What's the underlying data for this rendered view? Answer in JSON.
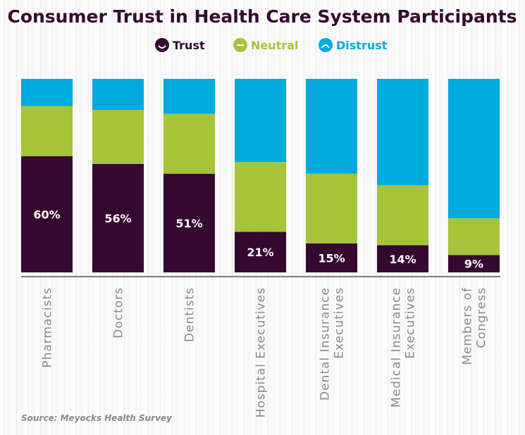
{
  "chart_data": {
    "type": "bar",
    "stacked": true,
    "title": "Consumer Trust in Health Care System Participants",
    "categories": [
      [
        "Pharmacists"
      ],
      [
        "Doctors"
      ],
      [
        "Dentists"
      ],
      [
        "Hospital Executives"
      ],
      [
        "Dental Insurance",
        "Executives"
      ],
      [
        "Medical Insurance",
        "Executives"
      ],
      [
        "Members of",
        "Congress"
      ]
    ],
    "series": [
      {
        "name": "Trust",
        "color": "#35092f",
        "icon": "smile-icon",
        "values": [
          60,
          56,
          51,
          21,
          15,
          14,
          9
        ]
      },
      {
        "name": "Neutral",
        "color": "#a5c43a",
        "icon": "neutral-face-icon",
        "values": [
          26,
          28,
          31,
          36,
          36,
          31,
          19
        ]
      },
      {
        "name": "Distrust",
        "color": "#00aade",
        "icon": "frown-icon",
        "values": [
          14,
          16,
          18,
          43,
          49,
          55,
          72
        ]
      }
    ],
    "data_labels": [
      "60%",
      "56%",
      "51%",
      "21%",
      "15%",
      "14%",
      "9%"
    ],
    "ylim": [
      0,
      100
    ],
    "grid": false,
    "legend": "top-center",
    "source": "Source: Meyocks Health Survey"
  }
}
